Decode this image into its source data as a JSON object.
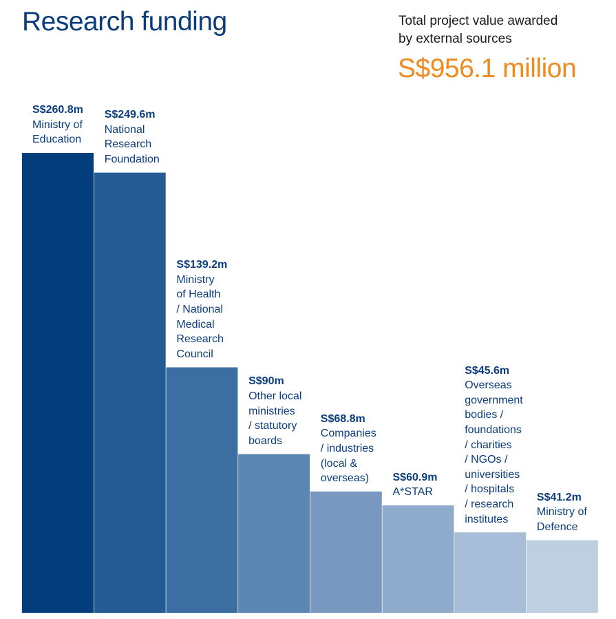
{
  "header": {
    "title": "Research funding",
    "summary_lines": [
      "Total project value awarded",
      "by external sources"
    ],
    "summary_value": "S$956.1 million"
  },
  "colors": {
    "title": "#0b3d7c",
    "accent": "#ee8a1e",
    "bars": [
      "#053e7c",
      "#245b94",
      "#3c6ea1",
      "#5d87b3",
      "#7998bf",
      "#8fabcb",
      "#a8bed8",
      "#becfe2"
    ]
  },
  "chart_data": {
    "type": "bar",
    "categories": [
      "Ministry of Education",
      "National Research Foundation",
      "Ministry of Health / National Medical Research Council",
      "Other local ministries / statutory boards",
      "Companies / industries (local & overseas)",
      "A*STAR",
      "Overseas government bodies / foundations / charities / NGOs / universities / hospitals / research institutes",
      "Ministry of Defence"
    ],
    "values": [
      260.8,
      249.6,
      139.2,
      90,
      68.8,
      60.9,
      45.6,
      41.2
    ],
    "value_labels": [
      "S$260.8m",
      "S$249.6m",
      "S$139.2m",
      "S$90m",
      "S$68.8m",
      "S$60.9m",
      "S$45.6m",
      "S$41.2m"
    ],
    "label_lines": [
      [
        "Ministry of",
        "Education"
      ],
      [
        "National",
        "Research",
        "Foundation"
      ],
      [
        "Ministry",
        "of Health",
        "/ National",
        "Medical",
        "Research",
        "Council"
      ],
      [
        "Other local",
        "ministries",
        "/ statutory",
        "boards"
      ],
      [
        "Companies",
        "/ industries",
        "(local &",
        "overseas)"
      ],
      [
        "A*STAR"
      ],
      [
        "Overseas",
        "government",
        "bodies /",
        "foundations",
        "/ charities",
        "/ NGOs /",
        "universities",
        "/ hospitals",
        "/ research",
        "institutes"
      ],
      [
        "Ministry of",
        "Defence"
      ]
    ],
    "unit": "S$ million",
    "ylim": [
      0,
      260.8
    ],
    "grid": false,
    "legend": "none"
  }
}
